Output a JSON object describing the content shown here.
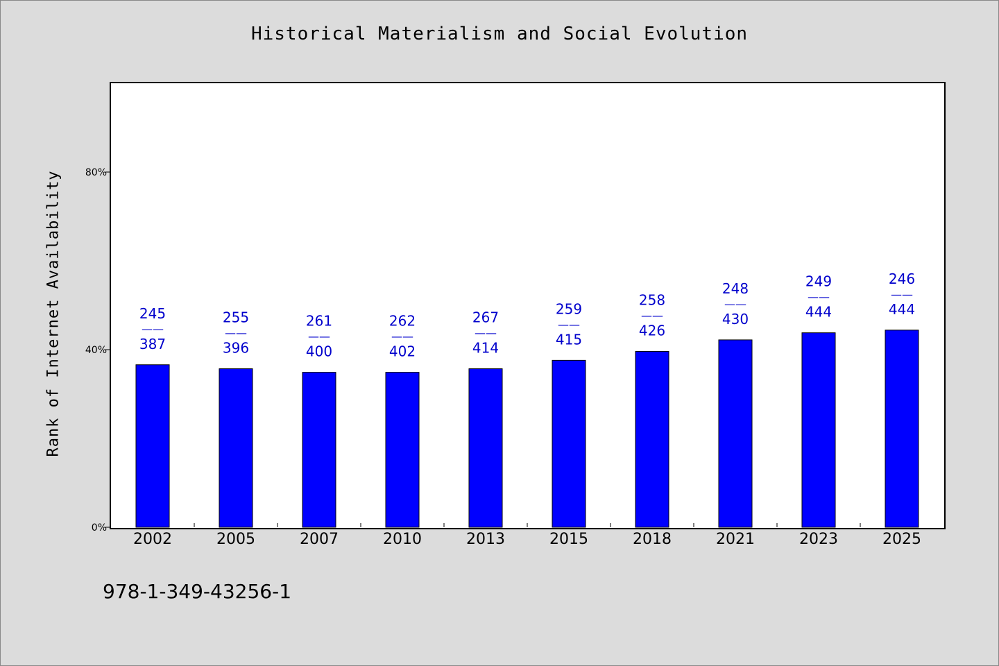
{
  "chart_data": {
    "type": "bar",
    "title": "Historical Materialism and Social Evolution",
    "ylabel": "Rank of Internet Availability",
    "xlabel": "",
    "ylim": [
      0,
      100
    ],
    "yticks": [
      0,
      40,
      80
    ],
    "ytick_labels": [
      "0%",
      "40%",
      "80%"
    ],
    "categories": [
      "2002",
      "2005",
      "2007",
      "2010",
      "2013",
      "2015",
      "2018",
      "2021",
      "2023",
      "2025"
    ],
    "values": [
      36.6,
      35.7,
      34.9,
      34.9,
      35.7,
      37.6,
      39.6,
      42.2,
      43.8,
      44.4
    ],
    "labels_top": [
      "245",
      "255",
      "261",
      "262",
      "267",
      "259",
      "258",
      "248",
      "249",
      "246"
    ],
    "labels_bottom": [
      "387",
      "396",
      "400",
      "402",
      "414",
      "415",
      "426",
      "430",
      "444",
      "444"
    ],
    "label_separator": "——",
    "bar_color": "#0000ff",
    "label_color": "#0000cc",
    "grid": false
  },
  "footer": {
    "isbn": "978-1-349-43256-1"
  }
}
